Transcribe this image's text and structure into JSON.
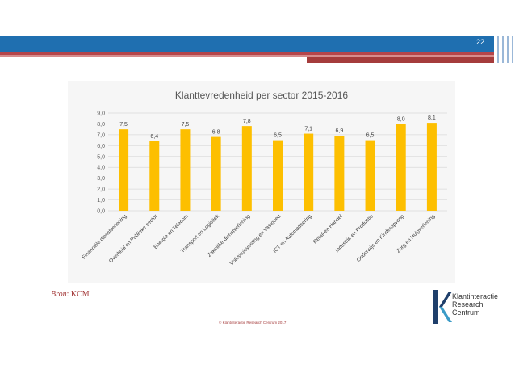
{
  "header": {
    "page_number": "22",
    "colors": {
      "blue": "#1f6fb0",
      "red": "#b5454a"
    }
  },
  "chart_data": {
    "type": "bar",
    "title": "Klanttevredenheid per sector 2015-2016",
    "categories": [
      "Financiële dienstverlening",
      "Overheid en Publieke sector",
      "Energie en Telecom",
      "Transport en Logistiek",
      "Zakelijke dienstverlening",
      "Volkshuisvesting en Vastgoed",
      "ICT en Automatisering",
      "Retail en Handel",
      "Industrie en Productie",
      "Onderwijs en Kinderopvang",
      "Zorg en Hulpverlening"
    ],
    "values": [
      7.5,
      6.4,
      7.5,
      6.8,
      7.8,
      6.5,
      7.1,
      6.9,
      6.5,
      8.0,
      8.1
    ],
    "value_labels": [
      "7,5",
      "6,4",
      "7,5",
      "6,8",
      "7,8",
      "6,5",
      "7,1",
      "6,9",
      "6,5",
      "8,0",
      "8,1"
    ],
    "y_ticks": [
      "0,0",
      "1,0",
      "2,0",
      "3,0",
      "4,0",
      "5,0",
      "6,0",
      "7,0",
      "8,0",
      "9,0"
    ],
    "ylim": [
      0,
      9
    ],
    "grid": true,
    "bar_color": "#fdbf00",
    "xlabel": "",
    "ylabel": ""
  },
  "source": {
    "prefix": "Bron",
    "text": ": KCM"
  },
  "footer": {
    "copyright": "© Klantinteractie Research Centrum 2017"
  },
  "logo": {
    "lines": [
      "Klantinteractie",
      "Research",
      "Centrum"
    ],
    "colors": {
      "dark": "#1f3f6b",
      "teal": "#3b9bc7"
    }
  }
}
